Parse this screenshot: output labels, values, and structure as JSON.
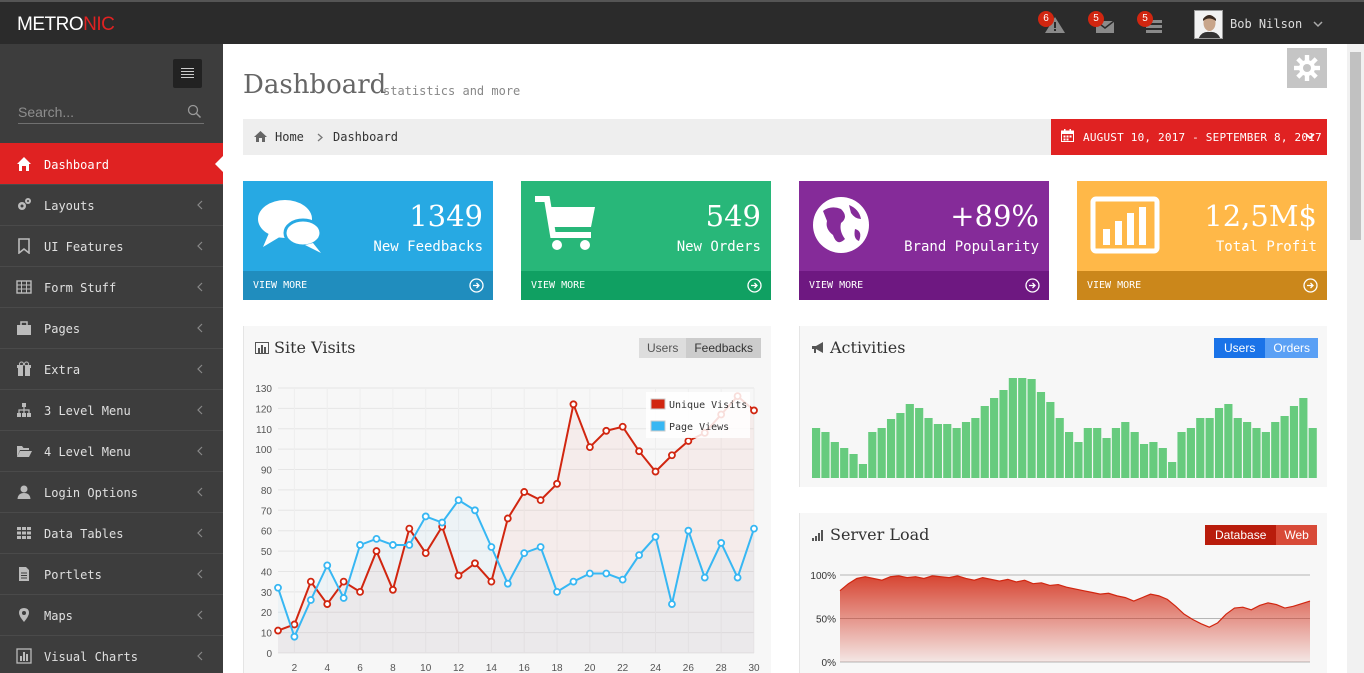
{
  "brand": {
    "prefix": "METRO",
    "accent": "NIC"
  },
  "header": {
    "notifications": "6",
    "inbox": "5",
    "tasks": "5",
    "user_name": "Bob Nilson"
  },
  "sidebar": {
    "search_placeholder": "Search...",
    "items": [
      {
        "label": "Dashboard",
        "icon": "home-icon",
        "active": true
      },
      {
        "label": "Layouts",
        "icon": "cogs-icon"
      },
      {
        "label": "UI Features",
        "icon": "bookmark-icon"
      },
      {
        "label": "Form Stuff",
        "icon": "table-icon"
      },
      {
        "label": "Pages",
        "icon": "briefcase-icon"
      },
      {
        "label": "Extra",
        "icon": "gift-icon"
      },
      {
        "label": "3 Level Menu",
        "icon": "sitemap-icon"
      },
      {
        "label": "4 Level Menu",
        "icon": "folder-open-icon"
      },
      {
        "label": "Login Options",
        "icon": "user-icon"
      },
      {
        "label": "Data Tables",
        "icon": "th-icon"
      },
      {
        "label": "Portlets",
        "icon": "file-icon"
      },
      {
        "label": "Maps",
        "icon": "map-marker-icon"
      },
      {
        "label": "Visual Charts",
        "icon": "bar-chart-icon"
      }
    ]
  },
  "page": {
    "title": "Dashboard",
    "subtitle": "statistics and more",
    "breadcrumb": [
      "Home",
      "Dashboard"
    ],
    "date_range": "AUGUST 10, 2017 - SEPTEMBER 8, 2017"
  },
  "tiles": [
    {
      "value": "1349",
      "desc": "New Feedbacks",
      "more": "VIEW MORE",
      "icon": "comments-icon",
      "color": "#27a9e3",
      "foot": "#208dbe"
    },
    {
      "value": "549",
      "desc": "New Orders",
      "more": "VIEW MORE",
      "icon": "shopping-cart-icon",
      "color": "#28b779",
      "foot": "#10a062"
    },
    {
      "value": "+89%",
      "desc": "Brand Popularity",
      "more": "VIEW MORE",
      "icon": "globe-icon",
      "color": "#852b99",
      "foot": "#6e1881"
    },
    {
      "value": "12,5M$",
      "desc": "Total Profit",
      "more": "VIEW MORE",
      "icon": "bar-chart-icon",
      "color": "#ffb848",
      "foot": "#cb871b"
    }
  ],
  "site_visits": {
    "title": "Site Visits",
    "tabs": [
      "Users",
      "Feedbacks"
    ]
  },
  "activities": {
    "title": "Activities",
    "tabs": [
      "Users",
      "Orders"
    ]
  },
  "server_load": {
    "title": "Server Load",
    "tabs": [
      "Database",
      "Web"
    ]
  },
  "chart_data": [
    {
      "type": "line",
      "title": "Site Visits",
      "x": [
        1,
        2,
        3,
        4,
        5,
        6,
        7,
        8,
        9,
        10,
        11,
        12,
        13,
        14,
        15,
        16,
        17,
        18,
        19,
        20,
        21,
        22,
        23,
        24,
        25,
        26,
        27,
        28,
        29,
        30
      ],
      "x_ticks": [
        2,
        4,
        6,
        8,
        10,
        12,
        14,
        16,
        18,
        20,
        22,
        24,
        26,
        28,
        30
      ],
      "y_ticks": [
        0,
        10,
        20,
        30,
        40,
        50,
        60,
        70,
        80,
        90,
        100,
        110,
        120,
        130
      ],
      "ylim": [
        0,
        130
      ],
      "legend_position": "top-right",
      "series": [
        {
          "name": "Unique Visits",
          "color": "#d12610",
          "values": [
            11,
            14,
            35,
            24,
            35,
            30,
            50,
            31,
            61,
            49,
            62,
            38,
            44,
            35,
            66,
            79,
            75,
            83,
            122,
            101,
            109,
            111,
            99,
            89,
            97,
            104,
            108,
            117,
            126,
            119
          ]
        },
        {
          "name": "Page Views",
          "color": "#37b7f3",
          "values": [
            32,
            8,
            26,
            43,
            27,
            53,
            56,
            53,
            53,
            67,
            64,
            75,
            70,
            52,
            34,
            49,
            52,
            30,
            35,
            39,
            39,
            36,
            48,
            57,
            24,
            60,
            37,
            54,
            37,
            61
          ]
        }
      ]
    },
    {
      "type": "bar",
      "title": "Activities",
      "color": "#67cb7e",
      "values": [
        50,
        46,
        36,
        30,
        24,
        14,
        46,
        50,
        59,
        65,
        74,
        70,
        60,
        54,
        54,
        50,
        56,
        60,
        72,
        80,
        88,
        100,
        100,
        99,
        86,
        76,
        60,
        46,
        36,
        50,
        50,
        40,
        50,
        56,
        46,
        34,
        36,
        30,
        16,
        46,
        50,
        60,
        60,
        70,
        74,
        60,
        56,
        50,
        46,
        56,
        62,
        72,
        80,
        50
      ],
      "ylim": [
        0,
        100
      ]
    },
    {
      "type": "area",
      "title": "Server Load",
      "color": "#d12610",
      "y_ticks": [
        "100%",
        "50%",
        "0%"
      ],
      "ylim": [
        0,
        100
      ],
      "values": [
        82,
        90,
        96,
        98,
        96,
        94,
        98,
        99,
        97,
        98,
        96,
        99,
        98,
        97,
        99,
        96,
        94,
        97,
        95,
        93,
        95,
        92,
        94,
        90,
        91,
        88,
        89,
        86,
        84,
        82,
        80,
        78,
        79,
        76,
        74,
        70,
        74,
        78,
        76,
        72,
        64,
        55,
        49,
        44,
        40,
        45,
        55,
        62,
        63,
        60,
        65,
        68,
        66,
        62,
        64,
        67,
        70
      ]
    }
  ]
}
